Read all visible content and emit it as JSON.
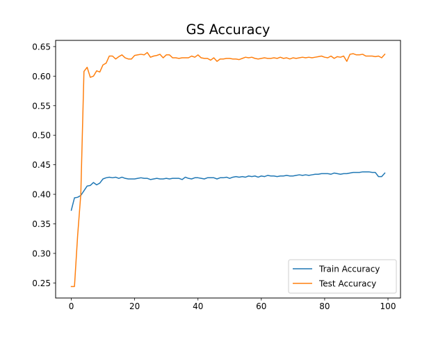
{
  "chart_data": {
    "type": "line",
    "title": "GS Accuracy",
    "xlabel": "",
    "ylabel": "",
    "xlim": [
      -4.95,
      103.95
    ],
    "ylim": [
      0.2245,
      0.6605
    ],
    "xticks": [
      0,
      20,
      40,
      60,
      80,
      100
    ],
    "yticks": [
      0.25,
      0.3,
      0.35,
      0.4,
      0.45,
      0.5,
      0.55,
      0.6,
      0.65
    ],
    "xtick_labels": [
      "0",
      "20",
      "40",
      "60",
      "80",
      "100"
    ],
    "ytick_labels": [
      "0.25",
      "0.30",
      "0.35",
      "0.40",
      "0.45",
      "0.50",
      "0.55",
      "0.60",
      "0.65"
    ],
    "grid": false,
    "legend_position": "lower-right",
    "series": [
      {
        "name": "Train Accuracy",
        "color": "#1f77b4",
        "x": [
          0,
          1,
          2,
          3,
          4,
          5,
          6,
          7,
          8,
          9,
          10,
          11,
          12,
          13,
          14,
          15,
          16,
          17,
          18,
          19,
          20,
          21,
          22,
          23,
          24,
          25,
          26,
          27,
          28,
          29,
          30,
          31,
          32,
          33,
          34,
          35,
          36,
          37,
          38,
          39,
          40,
          41,
          42,
          43,
          44,
          45,
          46,
          47,
          48,
          49,
          50,
          51,
          52,
          53,
          54,
          55,
          56,
          57,
          58,
          59,
          60,
          61,
          62,
          63,
          64,
          65,
          66,
          67,
          68,
          69,
          70,
          71,
          72,
          73,
          74,
          75,
          76,
          77,
          78,
          79,
          80,
          81,
          82,
          83,
          84,
          85,
          86,
          87,
          88,
          89,
          90,
          91,
          92,
          93,
          94,
          95,
          96,
          97,
          98,
          99
        ],
        "values": [
          0.373,
          0.394,
          0.395,
          0.398,
          0.406,
          0.414,
          0.415,
          0.42,
          0.416,
          0.419,
          0.426,
          0.428,
          0.429,
          0.428,
          0.429,
          0.427,
          0.429,
          0.427,
          0.426,
          0.426,
          0.426,
          0.427,
          0.428,
          0.427,
          0.427,
          0.425,
          0.426,
          0.427,
          0.426,
          0.426,
          0.427,
          0.426,
          0.427,
          0.427,
          0.427,
          0.425,
          0.429,
          0.427,
          0.426,
          0.428,
          0.428,
          0.427,
          0.426,
          0.428,
          0.428,
          0.428,
          0.426,
          0.428,
          0.428,
          0.429,
          0.427,
          0.429,
          0.43,
          0.429,
          0.43,
          0.429,
          0.431,
          0.43,
          0.431,
          0.429,
          0.431,
          0.43,
          0.432,
          0.431,
          0.431,
          0.43,
          0.431,
          0.431,
          0.432,
          0.431,
          0.431,
          0.432,
          0.433,
          0.432,
          0.433,
          0.432,
          0.433,
          0.434,
          0.434,
          0.435,
          0.435,
          0.435,
          0.434,
          0.436,
          0.435,
          0.434,
          0.435,
          0.435,
          0.436,
          0.437,
          0.437,
          0.437,
          0.438,
          0.438,
          0.438,
          0.437,
          0.437,
          0.43,
          0.43,
          0.436
        ]
      },
      {
        "name": "Test Accuracy",
        "color": "#ff7f0e",
        "x": [
          0,
          1,
          2,
          3,
          4,
          5,
          6,
          7,
          8,
          9,
          10,
          11,
          12,
          13,
          14,
          15,
          16,
          17,
          18,
          19,
          20,
          21,
          22,
          23,
          24,
          25,
          26,
          27,
          28,
          29,
          30,
          31,
          32,
          33,
          34,
          35,
          36,
          37,
          38,
          39,
          40,
          41,
          42,
          43,
          44,
          45,
          46,
          47,
          48,
          49,
          50,
          51,
          52,
          53,
          54,
          55,
          56,
          57,
          58,
          59,
          60,
          61,
          62,
          63,
          64,
          65,
          66,
          67,
          68,
          69,
          70,
          71,
          72,
          73,
          74,
          75,
          76,
          77,
          78,
          79,
          80,
          81,
          82,
          83,
          84,
          85,
          86,
          87,
          88,
          89,
          90,
          91,
          92,
          93,
          94,
          95,
          96,
          97,
          98,
          99
        ],
        "values": [
          0.244,
          0.244,
          0.33,
          0.4,
          0.608,
          0.615,
          0.598,
          0.6,
          0.609,
          0.607,
          0.619,
          0.622,
          0.634,
          0.634,
          0.629,
          0.633,
          0.636,
          0.631,
          0.629,
          0.629,
          0.635,
          0.636,
          0.637,
          0.636,
          0.64,
          0.632,
          0.634,
          0.635,
          0.637,
          0.631,
          0.636,
          0.636,
          0.631,
          0.631,
          0.63,
          0.631,
          0.631,
          0.631,
          0.634,
          0.632,
          0.636,
          0.631,
          0.63,
          0.63,
          0.627,
          0.631,
          0.625,
          0.629,
          0.629,
          0.63,
          0.63,
          0.629,
          0.629,
          0.628,
          0.63,
          0.632,
          0.631,
          0.632,
          0.63,
          0.629,
          0.63,
          0.631,
          0.63,
          0.63,
          0.631,
          0.63,
          0.632,
          0.63,
          0.631,
          0.629,
          0.631,
          0.63,
          0.631,
          0.632,
          0.631,
          0.632,
          0.631,
          0.632,
          0.633,
          0.634,
          0.632,
          0.631,
          0.634,
          0.63,
          0.633,
          0.632,
          0.634,
          0.625,
          0.637,
          0.638,
          0.636,
          0.636,
          0.637,
          0.634,
          0.634,
          0.634,
          0.633,
          0.634,
          0.631,
          0.637
        ]
      }
    ]
  }
}
